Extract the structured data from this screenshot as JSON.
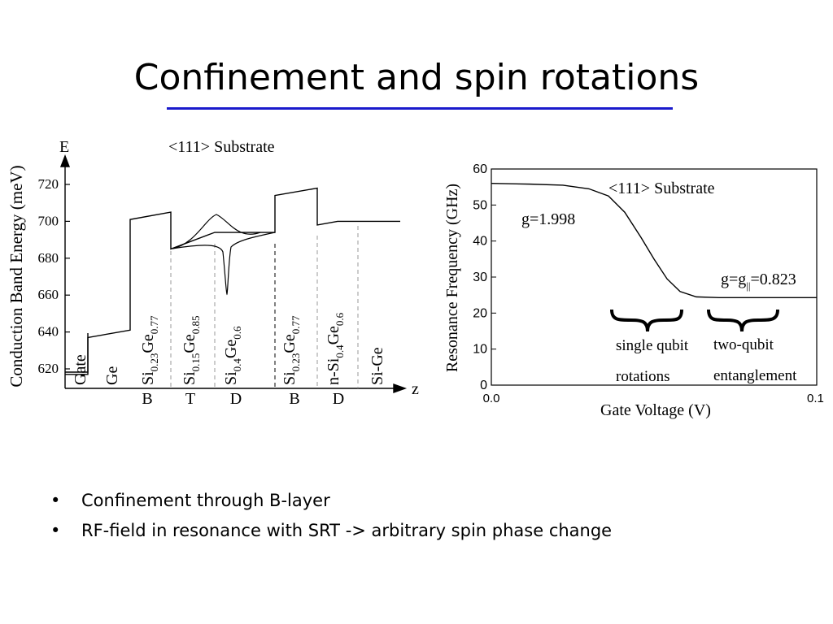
{
  "slide": {
    "title": "Confinement and spin rotations",
    "title_rule_color": "#1a1acc",
    "bullets": [
      "Confinement through B-layer",
      "RF-field in resonance with SRT -> arbitrary spin phase change"
    ],
    "bullet_symbol": "•"
  },
  "chart_data": [
    {
      "type": "line",
      "axis_top_label": "E",
      "ylabel": "Conduction Band Energy (meV)",
      "xlabel": "z",
      "annotation": "<111> Substrate",
      "yticks": [
        620,
        640,
        660,
        680,
        700,
        720
      ],
      "ylim": [
        612,
        730
      ],
      "layers": [
        {
          "main": "Gate"
        },
        {
          "main": "Ge"
        },
        {
          "main": "Si",
          "sub1": "0.23",
          "mid": "Ge",
          "sub2": "0.77"
        },
        {
          "main": "Si",
          "sub1": "0.15",
          "mid": "Ge",
          "sub2": "0.85"
        },
        {
          "main": "Si",
          "sub1": "0.4",
          "mid": "Ge",
          "sub2": "0.6"
        },
        {
          "main": "Si",
          "sub1": "0.23",
          "mid": "Ge",
          "sub2": "0.77"
        },
        {
          "main": "n-Si",
          "sub1": "0.4",
          "mid": "Ge",
          "sub2": "0.6"
        },
        {
          "main": "Si-Ge"
        }
      ],
      "bottom_labels": [
        "B",
        "T",
        "D",
        "B",
        "D"
      ],
      "band_edge": [
        [
          0,
          617
        ],
        [
          1,
          617
        ],
        [
          1,
          637
        ],
        [
          2,
          641
        ],
        [
          2,
          701
        ],
        [
          3,
          705
        ],
        [
          3,
          685
        ],
        [
          4,
          694
        ],
        [
          5,
          694
        ],
        [
          5,
          714
        ],
        [
          6,
          718
        ],
        [
          6,
          698
        ],
        [
          6.5,
          700
        ],
        [
          8,
          700
        ]
      ]
    },
    {
      "type": "line",
      "annotation": "<111> Substrate",
      "xlabel": "Gate Voltage (V)",
      "ylabel": "Resonance Frequency (GHz)",
      "xlim": [
        0.0,
        0.1
      ],
      "ylim": [
        0,
        60
      ],
      "xticks": [
        "0.0",
        "0.1"
      ],
      "yticks": [
        0,
        10,
        20,
        30,
        40,
        50,
        60
      ],
      "series": [
        {
          "x": [
            0.0,
            0.012,
            0.022,
            0.03,
            0.036,
            0.041,
            0.046,
            0.05,
            0.054,
            0.058,
            0.063,
            0.07,
            0.08,
            0.09,
            0.1
          ],
          "y": [
            56,
            55.8,
            55.5,
            54.5,
            52.5,
            48,
            41,
            35,
            29.5,
            26,
            24.5,
            24.3,
            24.3,
            24.3,
            24.3
          ]
        }
      ],
      "labels": {
        "g_low": "g=1.998",
        "g_high_prefix": "g=g",
        "g_high_sub": "||",
        "g_high_suffix": "=0.823",
        "bracket1_line1": "single qubit",
        "bracket1_line2": "rotations",
        "bracket2_line1": "two-qubit",
        "bracket2_line2": "entanglement"
      }
    }
  ]
}
